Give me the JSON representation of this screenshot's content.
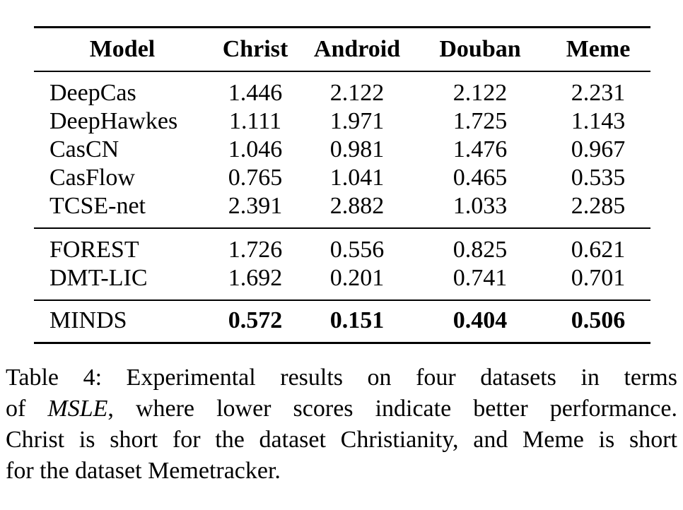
{
  "table": {
    "headers": [
      "Model",
      "Christ",
      "Android",
      "Douban",
      "Meme"
    ],
    "groups": [
      {
        "rows": [
          {
            "model": "DeepCas",
            "values": [
              "1.446",
              "2.122",
              "2.122",
              "2.231"
            ]
          },
          {
            "model": "DeepHawkes",
            "values": [
              "1.111",
              "1.971",
              "1.725",
              "1.143"
            ]
          },
          {
            "model": "CasCN",
            "values": [
              "1.046",
              "0.981",
              "1.476",
              "0.967"
            ]
          },
          {
            "model": "CasFlow",
            "values": [
              "0.765",
              "1.041",
              "0.465",
              "0.535"
            ]
          },
          {
            "model": "TCSE-net",
            "values": [
              "2.391",
              "2.882",
              "1.033",
              "2.285"
            ]
          }
        ]
      },
      {
        "rows": [
          {
            "model": "FOREST",
            "values": [
              "1.726",
              "0.556",
              "0.825",
              "0.621"
            ]
          },
          {
            "model": "DMT-LIC",
            "values": [
              "1.692",
              "0.201",
              "0.741",
              "0.701"
            ]
          }
        ]
      },
      {
        "rows": [
          {
            "model": "MINDS",
            "values": [
              "0.572",
              "0.151",
              "0.404",
              "0.506"
            ],
            "bold": true
          }
        ]
      }
    ]
  },
  "caption": {
    "line1": "Table 4: Experimental results on four datasets in terms",
    "line2_prefix": "of ",
    "line2_em": "MSLE",
    "line2_suffix": ", where lower scores indicate better performance.",
    "line3": "Christ is short for the dataset Christianity, and Meme is short",
    "line4": "for the dataset Memetracker."
  }
}
